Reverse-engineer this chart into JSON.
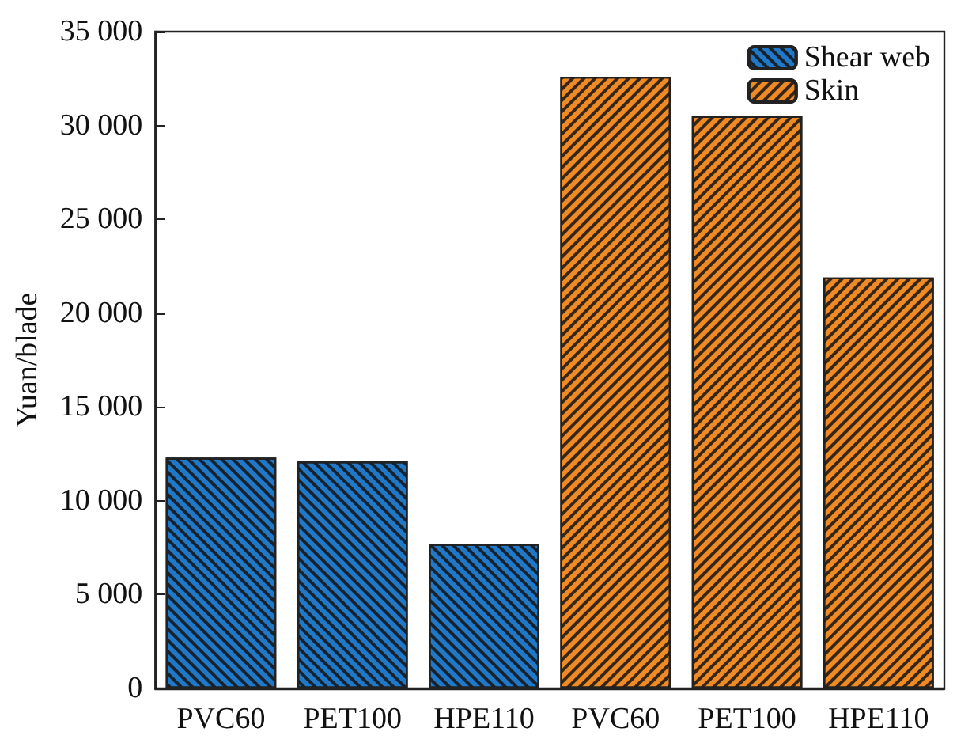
{
  "chart_data": {
    "type": "bar",
    "ylabel": "Yuan/blade",
    "categories": [
      "PVC60",
      "PET100",
      "HPE110",
      "PVC60",
      "PET100",
      "HPE110"
    ],
    "series": [
      {
        "name": "Shear web",
        "color": "#1f78c8",
        "values": [
          12300,
          12100,
          7700,
          null,
          null,
          null
        ]
      },
      {
        "name": "Skin",
        "color": "#f08a24",
        "values": [
          null,
          null,
          null,
          32600,
          30500,
          21900
        ]
      }
    ],
    "ylim": [
      0,
      35000
    ],
    "yticks": [
      {
        "value": 0,
        "label": "0"
      },
      {
        "value": 5000,
        "label": "5 000"
      },
      {
        "value": 10000,
        "label": "10 000"
      },
      {
        "value": 15000,
        "label": "15 000"
      },
      {
        "value": 20000,
        "label": "20 000"
      },
      {
        "value": 25000,
        "label": "25 000"
      },
      {
        "value": 30000,
        "label": "30 000"
      },
      {
        "value": 35000,
        "label": "35 000"
      }
    ],
    "grid": false,
    "legend": "top right"
  }
}
